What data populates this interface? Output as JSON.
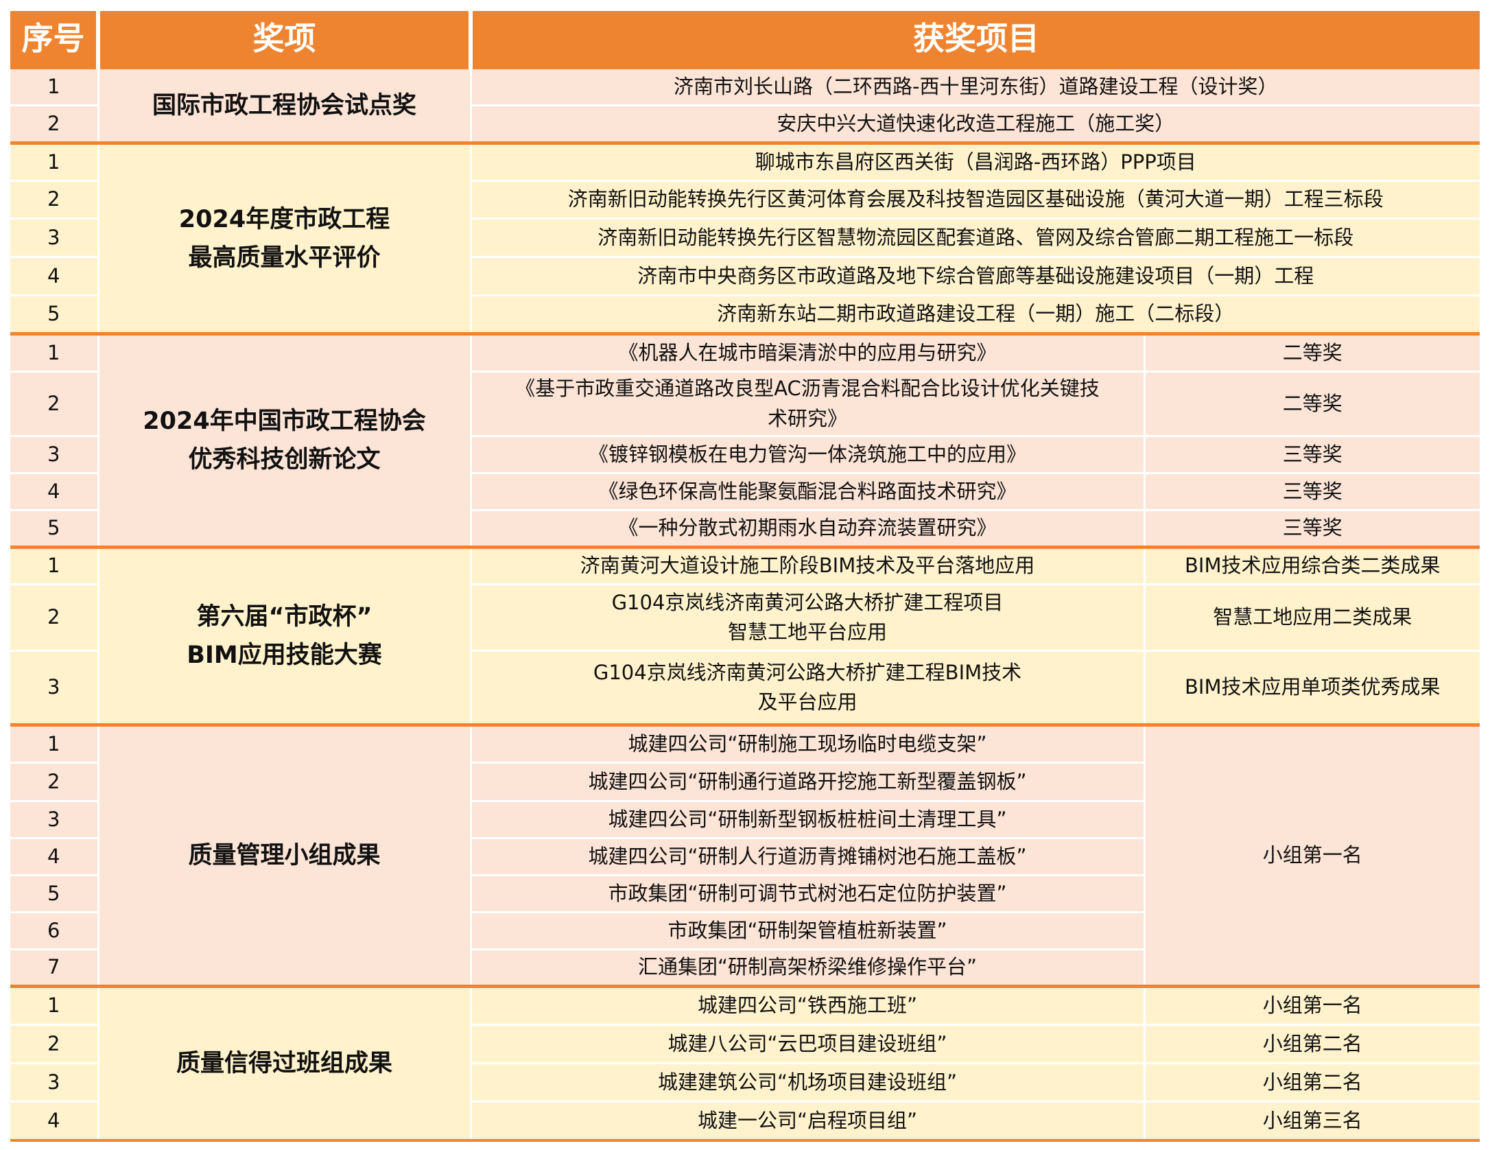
{
  "header": {
    "no": "序号",
    "award": "奖项",
    "project": "获奖项目"
  },
  "colors": {
    "header": "#EE8430",
    "pink": "#FCE4D6",
    "yellow": "#FFF2CC",
    "divider": "#EE8430"
  },
  "groups": [
    {
      "award_lines": [
        "国际市政工程协会试点奖"
      ],
      "tone": "pink",
      "rows": [
        {
          "no": "1",
          "project": "济南市刘长山路（二环西路-西十里河东街）道路建设工程（设计奖）"
        },
        {
          "no": "2",
          "project": "安庆中兴大道快速化改造工程施工（施工奖）"
        }
      ]
    },
    {
      "award_lines": [
        "2024年度市政工程",
        "最高质量水平评价"
      ],
      "tone": "yellow",
      "rows": [
        {
          "no": "1",
          "project": "聊城市东昌府区西关街（昌润路-西环路）PPP项目"
        },
        {
          "no": "2",
          "project": "济南新旧动能转换先行区黄河体育会展及科技智造园区基础设施（黄河大道一期）工程三标段"
        },
        {
          "no": "3",
          "project": "济南新旧动能转换先行区智慧物流园区配套道路、管网及综合管廊二期工程施工一标段"
        },
        {
          "no": "4",
          "project": "济南市中央商务区市政道路及地下综合管廊等基础设施建设项目（一期）工程"
        },
        {
          "no": "5",
          "project": "济南新东站二期市政道路建设工程（一期）施工（二标段）"
        }
      ]
    },
    {
      "award_lines": [
        "2024年中国市政工程协会",
        "优秀科技创新论文"
      ],
      "tone": "pink",
      "rows": [
        {
          "no": "1",
          "project_lines": [
            "《机器人在城市暗渠清淤中的应用与研究》"
          ],
          "result": "二等奖"
        },
        {
          "no": "2",
          "project_lines": [
            "《基于市政重交通道路改良型AC沥青混合料配合比设计优化关键技",
            "术研究》"
          ],
          "result": "二等奖"
        },
        {
          "no": "3",
          "project_lines": [
            "《镀锌钢模板在电力管沟一体浇筑施工中的应用》"
          ],
          "result": "三等奖"
        },
        {
          "no": "4",
          "project_lines": [
            "《绿色环保高性能聚氨酯混合料路面技术研究》"
          ],
          "result": "三等奖"
        },
        {
          "no": "5",
          "project_lines": [
            "《一种分散式初期雨水自动弃流装置研究》"
          ],
          "result": "三等奖"
        }
      ]
    },
    {
      "award_lines": [
        "第六届“市政杯”",
        "BIM应用技能大赛"
      ],
      "tone": "yellow",
      "rows": [
        {
          "no": "1",
          "project_lines": [
            "济南黄河大道设计施工阶段BIM技术及平台落地应用"
          ],
          "result": "BIM技术应用综合类二类成果"
        },
        {
          "no": "2",
          "project_lines": [
            "G104京岚线济南黄河公路大桥扩建工程项目",
            "智慧工地平台应用"
          ],
          "result": "智慧工地应用二类成果"
        },
        {
          "no": "3",
          "project_lines": [
            "G104京岚线济南黄河公路大桥扩建工程BIM技术",
            "及平台应用"
          ],
          "result": "BIM技术应用单项类优秀成果"
        }
      ]
    },
    {
      "award_lines": [
        "质量管理小组成果"
      ],
      "tone": "pink",
      "merged_result": "小组第一名",
      "rows": [
        {
          "no": "1",
          "project_lines": [
            "城建四公司“研制施工现场临时电缆支架”"
          ]
        },
        {
          "no": "2",
          "project_lines": [
            "城建四公司“研制通行道路开挖施工新型覆盖钢板”"
          ]
        },
        {
          "no": "3",
          "project_lines": [
            "城建四公司“研制新型钢板桩桩间土清理工具”"
          ]
        },
        {
          "no": "4",
          "project_lines": [
            "城建四公司“研制人行道沥青摊铺树池石施工盖板”"
          ]
        },
        {
          "no": "5",
          "project_lines": [
            "市政集团“研制可调节式树池石定位防护装置”"
          ]
        },
        {
          "no": "6",
          "project_lines": [
            "市政集团“研制架管植桩新装置”"
          ]
        },
        {
          "no": "7",
          "project_lines": [
            "汇通集团“研制高架桥梁维修操作平台”"
          ]
        }
      ]
    },
    {
      "award_lines": [
        "质量信得过班组成果"
      ],
      "tone": "yellow",
      "rows": [
        {
          "no": "1",
          "project_lines": [
            "城建四公司“铁西施工班”"
          ],
          "result": "小组第一名"
        },
        {
          "no": "2",
          "project_lines": [
            "城建八公司“云巴项目建设班组”"
          ],
          "result": "小组第二名"
        },
        {
          "no": "3",
          "project_lines": [
            "城建建筑公司“机场项目建设班组”"
          ],
          "result": "小组第二名"
        },
        {
          "no": "4",
          "project_lines": [
            "城建一公司“启程项目组”"
          ],
          "result": "小组第三名"
        }
      ]
    }
  ]
}
